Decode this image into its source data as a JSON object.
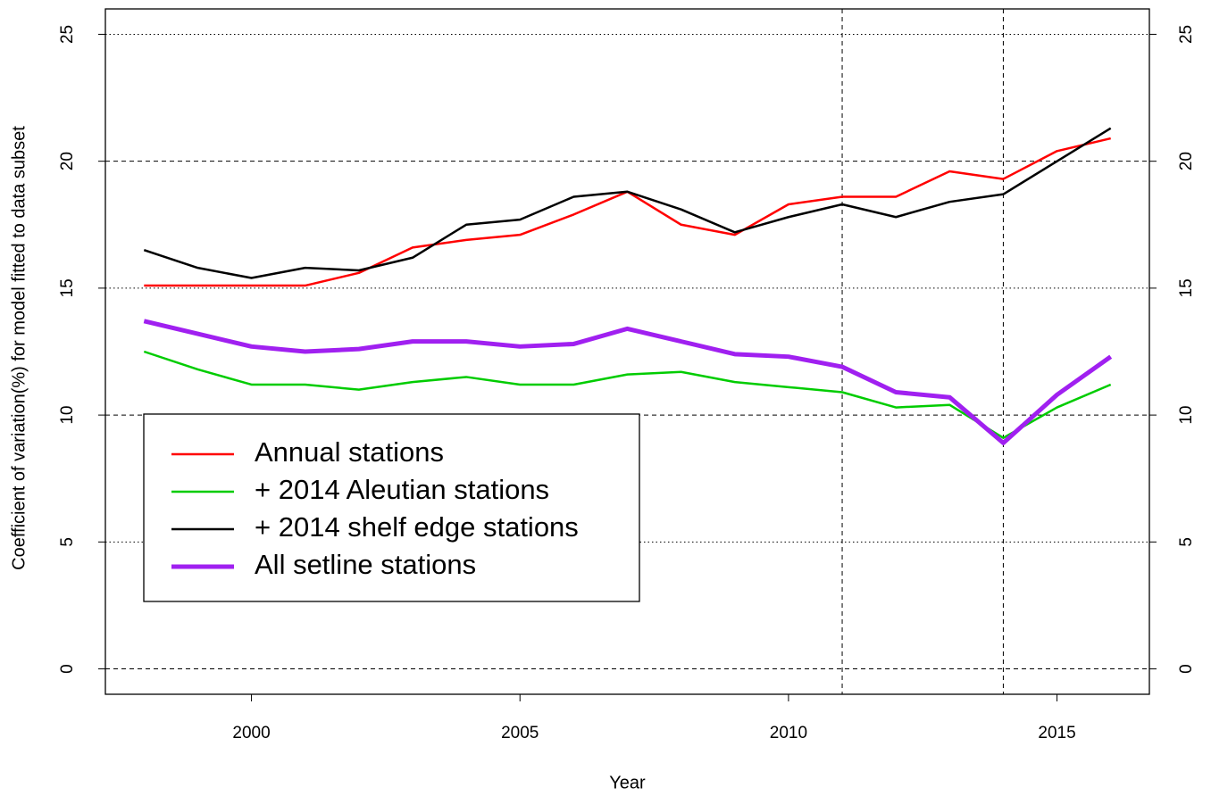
{
  "chart_data": {
    "type": "line",
    "x_label": "Year",
    "y_label": "Coefficient of variation(%) for model fitted to data subset",
    "x": [
      1998,
      1999,
      2000,
      2001,
      2002,
      2003,
      2004,
      2005,
      2006,
      2007,
      2008,
      2009,
      2010,
      2011,
      2012,
      2013,
      2014,
      2015,
      2016
    ],
    "series": [
      {
        "name": "Annual stations",
        "color": "#ff0000",
        "width": 2.5,
        "values": [
          15.1,
          15.1,
          15.1,
          15.1,
          15.6,
          16.6,
          16.9,
          17.1,
          17.9,
          18.8,
          17.5,
          17.1,
          18.3,
          18.6,
          18.6,
          19.6,
          19.3,
          20.4,
          20.9
        ]
      },
      {
        "name": "+ 2014 Aleutian stations",
        "color": "#00cc00",
        "width": 2.5,
        "values": [
          12.5,
          11.8,
          11.2,
          11.2,
          11.0,
          11.3,
          11.5,
          11.2,
          11.2,
          11.6,
          11.7,
          11.3,
          11.1,
          10.9,
          10.3,
          10.4,
          9.1,
          10.3,
          11.2
        ]
      },
      {
        "name": "+ 2014 shelf edge stations",
        "color": "#000000",
        "width": 2.5,
        "values": [
          16.5,
          15.8,
          15.4,
          15.8,
          15.7,
          16.2,
          17.5,
          17.7,
          18.6,
          18.8,
          18.1,
          17.2,
          17.8,
          18.3,
          17.8,
          18.4,
          18.7,
          20.0,
          21.3
        ]
      },
      {
        "name": "All setline stations",
        "color": "#a020f0",
        "width": 5,
        "values": [
          13.7,
          13.2,
          12.7,
          12.5,
          12.6,
          12.9,
          12.9,
          12.7,
          12.8,
          13.4,
          12.9,
          12.4,
          12.3,
          11.9,
          10.9,
          10.7,
          8.9,
          10.8,
          12.3
        ]
      }
    ],
    "xlim": [
      1997.28,
      2016.72
    ],
    "xticks": [
      2000,
      2005,
      2010,
      2015
    ],
    "ylim": [
      -1,
      26
    ],
    "yticks": [
      0,
      5,
      10,
      15,
      20,
      25
    ],
    "dashed_hlines": [
      0,
      10,
      20
    ],
    "dotted_hlines": [
      5,
      15,
      25
    ],
    "dashed_vlines": [
      2011,
      2014
    ],
    "legend": "bottomleft"
  }
}
